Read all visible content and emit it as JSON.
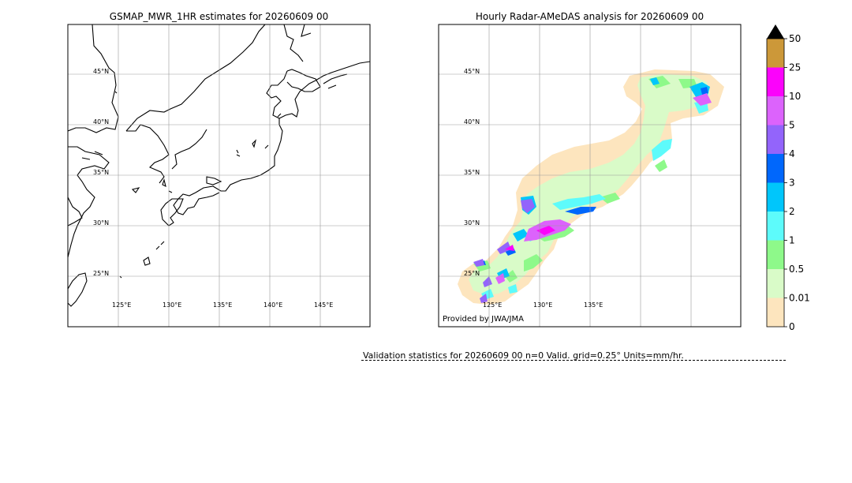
{
  "left_panel": {
    "title": "GSMAP_MWR_1HR estimates for 20260609 00",
    "lat_labels": [
      "45°N",
      "40°N",
      "35°N",
      "30°N",
      "25°N"
    ],
    "lon_labels": [
      "125°E",
      "130°E",
      "135°E",
      "140°E",
      "145°E"
    ]
  },
  "right_panel": {
    "title": "Hourly Radar-AMeDAS analysis for 20260609 00",
    "lat_labels": [
      "45°N",
      "40°N",
      "35°N",
      "30°N",
      "25°N"
    ],
    "lon_labels": [
      "125°E",
      "130°E",
      "135°E"
    ],
    "credit": "Provided by JWA/JMA"
  },
  "colorbar": {
    "levels": [
      "0",
      "0.01",
      "0.5",
      "1",
      "2",
      "3",
      "4",
      "5",
      "10",
      "25",
      "50"
    ],
    "colors": [
      "#fde5be",
      "#d9fbc8",
      "#8ef98a",
      "#5dfbfb",
      "#00c6fb",
      "#0067fc",
      "#9364fb",
      "#dc63fc",
      "#fb03fb",
      "#cc9839"
    ],
    "overflow_color": "#000000"
  },
  "validation": {
    "text": "Validation statistics for 20260609 00  n=0 Valid. grid=0.25° Units=mm/hr."
  }
}
